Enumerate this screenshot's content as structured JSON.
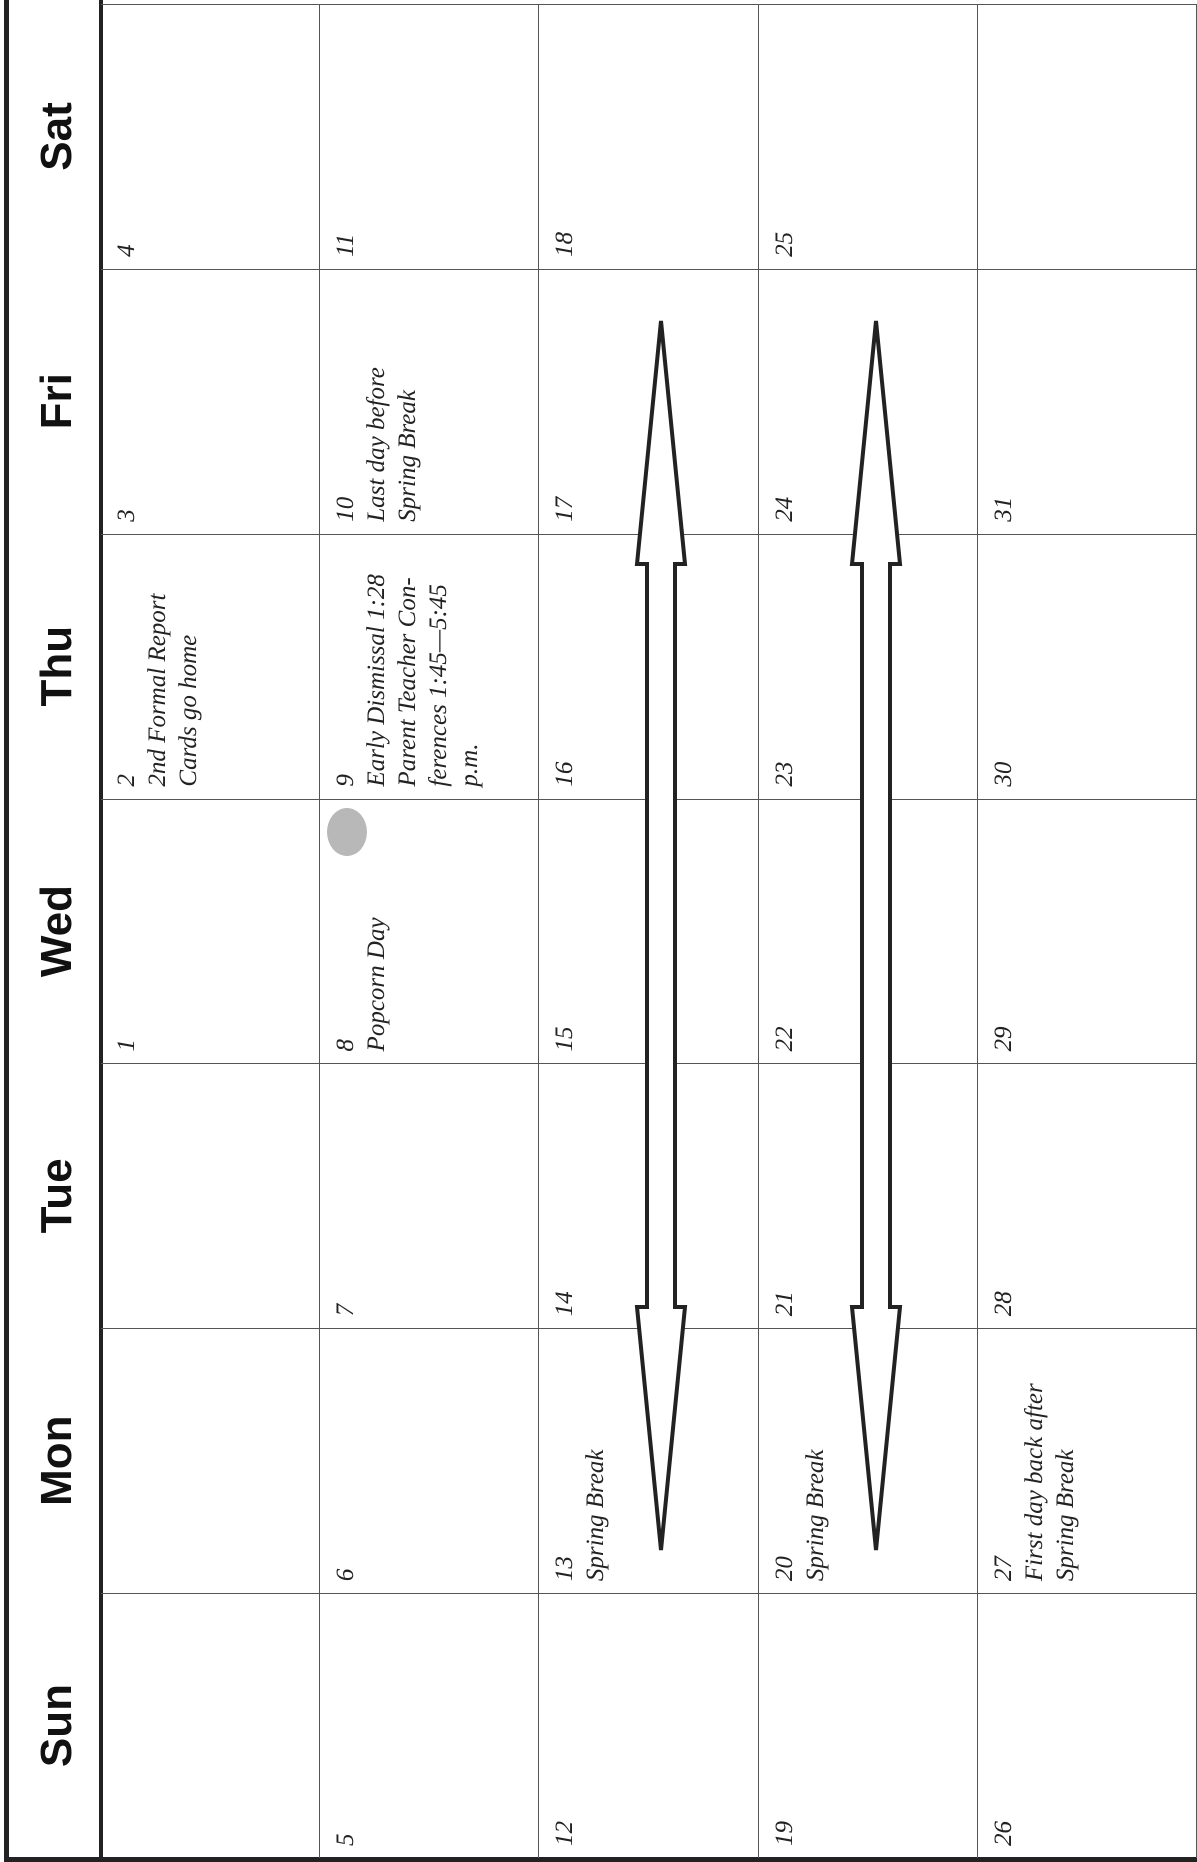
{
  "header": {
    "days": [
      "Sun",
      "Mon",
      "Tue",
      "Wed",
      "Thu",
      "Fri",
      "Sat"
    ]
  },
  "weeks": [
    [
      {},
      {},
      {},
      {
        "date": 1
      },
      {
        "date": 2,
        "notes": [
          "2nd Formal Report",
          "Cards go home"
        ]
      },
      {
        "date": 3
      },
      {
        "date": 4
      }
    ],
    [
      {
        "date": 5
      },
      {
        "date": 6
      },
      {
        "date": 7
      },
      {
        "date": 8,
        "notes": [
          "Popcorn Day"
        ]
      },
      {
        "date": 9,
        "notes": [
          "Early Dismissal 1:28",
          "Parent Teacher Con-",
          "ferences 1:45—5:45",
          "p.m."
        ]
      },
      {
        "date": 10,
        "notes": [
          "Last day before",
          "Spring Break"
        ]
      },
      {
        "date": 11
      }
    ],
    [
      {
        "date": 12
      },
      {
        "date": 13,
        "notes": [
          "Spring Break"
        ]
      },
      {
        "date": 14
      },
      {
        "date": 15
      },
      {
        "date": 16
      },
      {
        "date": 17
      },
      {
        "date": 18
      }
    ],
    [
      {
        "date": 19
      },
      {
        "date": 20,
        "notes": [
          "Spring Break"
        ]
      },
      {
        "date": 21
      },
      {
        "date": 22
      },
      {
        "date": 23
      },
      {
        "date": 24
      },
      {
        "date": 25
      }
    ],
    [
      {
        "date": 26
      },
      {
        "date": 27,
        "notes": [
          "First day back after",
          "Spring Break"
        ]
      },
      {
        "date": 28
      },
      {
        "date": 29
      },
      {
        "date": 30
      },
      {
        "date": 31
      },
      {}
    ]
  ]
}
